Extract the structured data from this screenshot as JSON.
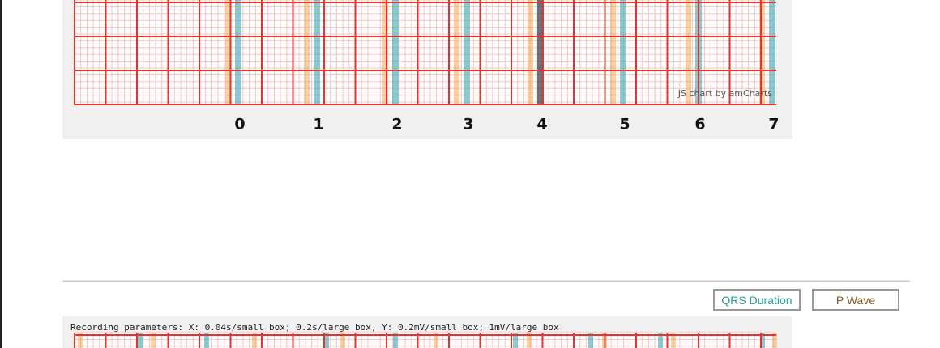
{
  "top_chart": {
    "beat_labels": [
      "0",
      "1",
      "2",
      "3",
      "4",
      "5",
      "6",
      "7"
    ],
    "watermark": "JS chart by amCharts"
  },
  "buttons": {
    "qrs": "QRS Duration",
    "p_wave": "P Wave"
  },
  "bottom_chart": {
    "recording_parameters": "Recording parameters: X: 0.04s/small box; 0.2s/large box, Y: 0.2mV/small box; 1mV/large box"
  }
}
